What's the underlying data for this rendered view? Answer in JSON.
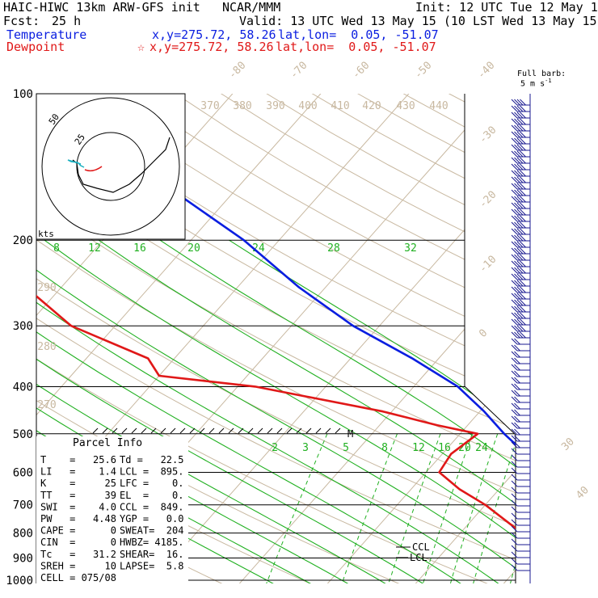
{
  "header": {
    "model": "HAIC-HIWC 13km ARW-GFS init",
    "org": "NCAR/MMM",
    "init": "Init: 12 UTC Tue 12 May 15",
    "fcst_label": "Fcst:",
    "fcst_value": "25 h",
    "valid": "Valid: 13 UTC Wed 13 May 15 (10 LST Wed 13 May 15)",
    "temp_label": "Temperature",
    "temp_xy": "x,y=275.72, 58.26",
    "temp_latlon": "lat,lon=  0.05, -51.07",
    "dew_label": "Dewpoint",
    "dew_xy": "x,y=275.72, 58.26",
    "dew_latlon": "lat,lon=  0.05, -51.07",
    "full_barb": "Full barb:",
    "barb_unit": "5 m s",
    "barb_unit_sup": "-1"
  },
  "colors": {
    "temperature": "#0a1ee0",
    "dewpoint": "#e01818",
    "isotherm": "#c8b8a0",
    "mixing_ratio": "#20b020",
    "grid": "#000000",
    "barb": "#1a1a90",
    "text_red": "#e01818",
    "text_blue": "#0a1ee0"
  },
  "hodograph": {
    "ring_labels": [
      "25",
      "50"
    ],
    "unit_label": "kts"
  },
  "parcel_info": {
    "title": "Parcel Info",
    "rows": [
      {
        "left": "T    =   25.6",
        "right": "Td =   22.5"
      },
      {
        "left": "LI   =    1.4",
        "right": "LCL =  895."
      },
      {
        "left": "K    =     25",
        "right": "LFC =    0."
      },
      {
        "left": "TT   =     39",
        "right": "EL  =    0."
      },
      {
        "left": "SWI  =    4.0",
        "right": "CCL =  849."
      },
      {
        "left": "PW   =   4.48",
        "right": "YGP =   0.0"
      },
      {
        "left": "CAPE =      0",
        "right": "SWEAT=  204"
      },
      {
        "left": "CIN  =      0",
        "right": "HWBZ= 4185."
      },
      {
        "left": "Tc   =   31.2",
        "right": "SHEAR=  16."
      },
      {
        "left": "SREH =     10",
        "right": "LAPSE=  5.8"
      },
      {
        "left": "CELL = 075/08",
        "right": ""
      }
    ]
  },
  "chart_data": {
    "type": "line",
    "title": "",
    "xlabel": "",
    "ylabel": "",
    "pressure_levels_hpa": [
      100,
      200,
      300,
      400,
      500,
      600,
      700,
      800,
      900,
      1000
    ],
    "pressure_labels": [
      "100",
      "200",
      "300",
      "400",
      "500",
      "600",
      "700",
      "800",
      "900",
      "1000"
    ],
    "isotherm_labels_top": [
      "-80",
      "-70",
      "-60",
      "-50",
      "-40"
    ],
    "isotherm_labels_right": [
      "-30",
      "-20",
      "-10",
      "0",
      "30",
      "40"
    ],
    "theta_labels": [
      "370",
      "380",
      "390",
      "400",
      "410",
      "420",
      "430",
      "440"
    ],
    "theta_side_labels": [
      "290",
      "280",
      "270"
    ],
    "theta_e_labels": [
      "8",
      "12",
      "16",
      "20",
      "24",
      "28",
      "32"
    ],
    "mixing_ratio_labels": [
      "2",
      "3",
      "5",
      "8",
      "12",
      "16",
      "20",
      "24"
    ],
    "annotations": [
      "M",
      "CCL",
      "LCL"
    ],
    "series": [
      {
        "name": "Temperature",
        "points": [
          {
            "p": 100,
            "t": -77.0
          },
          {
            "p": 150,
            "t": -70.0
          },
          {
            "p": 200,
            "t": -54.0
          },
          {
            "p": 250,
            "t": -43.0
          },
          {
            "p": 300,
            "t": -33.0
          },
          {
            "p": 350,
            "t": -23.0
          },
          {
            "p": 400,
            "t": -15.0
          },
          {
            "p": 450,
            "t": -9.5
          },
          {
            "p": 500,
            "t": -5.0
          },
          {
            "p": 550,
            "t": -0.5
          },
          {
            "p": 600,
            "t": 3.0
          },
          {
            "p": 650,
            "t": 6.5
          },
          {
            "p": 700,
            "t": 9.0
          },
          {
            "p": 750,
            "t": 12.5
          },
          {
            "p": 800,
            "t": 15.0
          },
          {
            "p": 850,
            "t": 18.5
          },
          {
            "p": 900,
            "t": 21.5
          },
          {
            "p": 950,
            "t": 24.0
          },
          {
            "p": 1000,
            "t": 25.6
          }
        ]
      },
      {
        "name": "Dewpoint",
        "points": [
          {
            "p": 100,
            "t": -96.0
          },
          {
            "p": 150,
            "t": -89.0
          },
          {
            "p": 200,
            "t": -79.0
          },
          {
            "p": 250,
            "t": -74.0
          },
          {
            "p": 300,
            "t": -65.0
          },
          {
            "p": 350,
            "t": -53.0
          },
          {
            "p": 380,
            "t": -50.0
          },
          {
            "p": 400,
            "t": -38.0
          },
          {
            "p": 450,
            "t": -21.0
          },
          {
            "p": 480,
            "t": -13.5
          },
          {
            "p": 500,
            "t": -8.0
          },
          {
            "p": 550,
            "t": -9.0
          },
          {
            "p": 600,
            "t": -8.5
          },
          {
            "p": 650,
            "t": -4.5
          },
          {
            "p": 700,
            "t": 0.0
          },
          {
            "p": 800,
            "t": 7.0
          },
          {
            "p": 850,
            "t": 14.0
          },
          {
            "p": 900,
            "t": 18.0
          },
          {
            "p": 950,
            "t": 21.0
          },
          {
            "p": 1000,
            "t": 22.5
          }
        ]
      }
    ]
  }
}
